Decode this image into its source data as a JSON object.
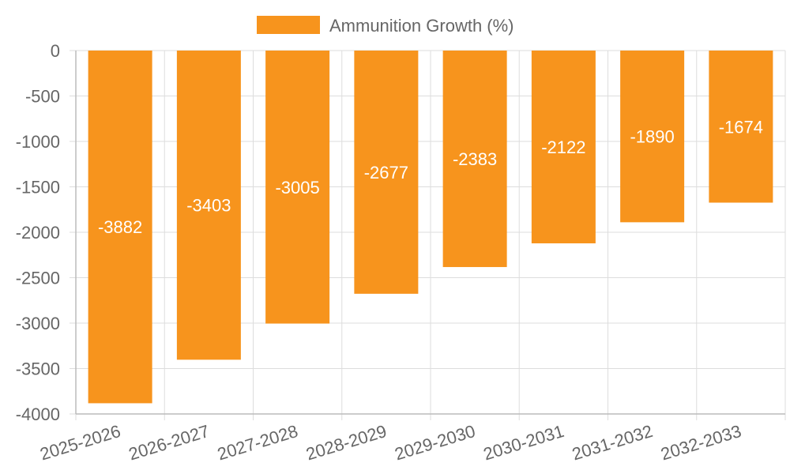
{
  "chart_data": {
    "type": "bar",
    "categories": [
      "2025-2026",
      "2026-2027",
      "2027-2028",
      "2028-2029",
      "2029-2030",
      "2030-2031",
      "2031-2032",
      "2032-2033"
    ],
    "series": [
      {
        "name": "Ammunition Growth (%)",
        "values": [
          -3882,
          -3403,
          -3005,
          -2677,
          -2383,
          -2122,
          -1890,
          -1674
        ],
        "color": "#f7941d"
      }
    ],
    "ylim": [
      -4000,
      0
    ],
    "yticks": [
      "0",
      "-500",
      "-1000",
      "-1500",
      "-2000",
      "-2500",
      "-3000",
      "-3500",
      "-4000"
    ],
    "ytick_values": [
      0,
      -500,
      -1000,
      -1500,
      -2000,
      -2500,
      -3000,
      -3500,
      -4000
    ],
    "grid": true,
    "legend_position": "top"
  },
  "colors": {
    "bar": "#f7941d",
    "grid": "#dddddd",
    "axis": "#bbbbbb",
    "tick_text": "#666666"
  }
}
